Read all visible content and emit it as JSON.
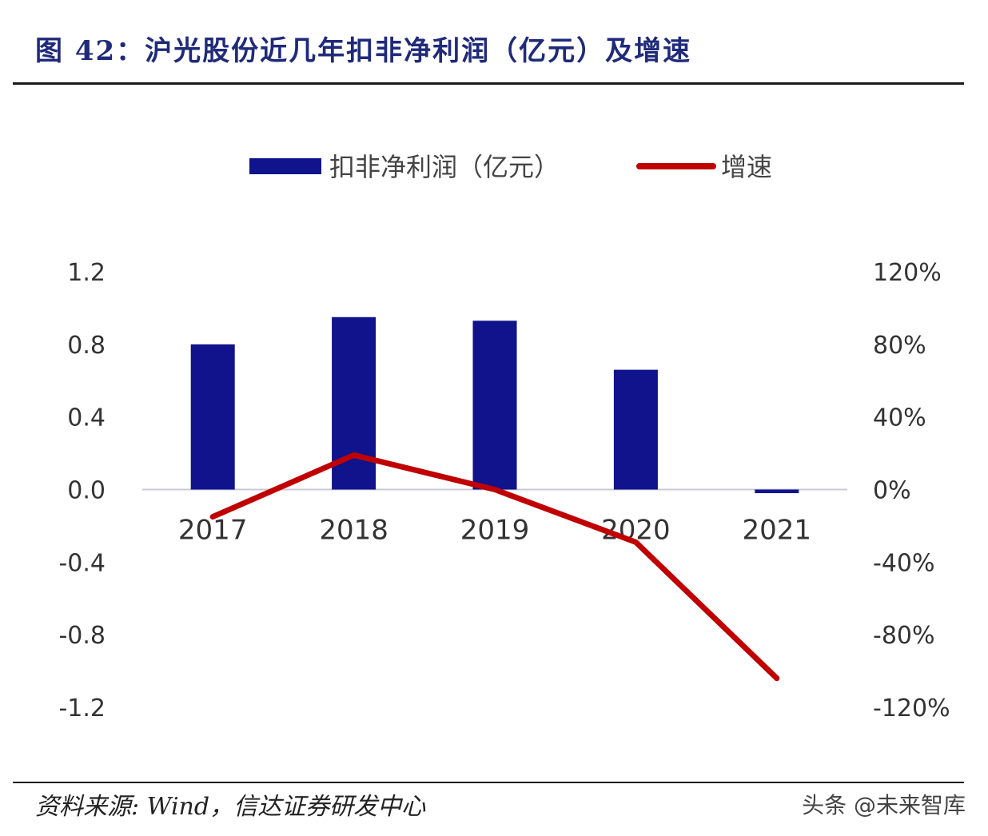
{
  "figure": {
    "title": "图 42：沪光股份近几年扣非净利润（亿元）及增速",
    "source": "资料来源: Wind，信达证券研发中心",
    "watermark": "头条 @未来智库"
  },
  "colors": {
    "bar": "#10138c",
    "line": "#c00000",
    "axis": "#c8c8d8"
  },
  "chart_data": {
    "type": "bar",
    "categories": [
      "2017",
      "2018",
      "2019",
      "2020",
      "2021"
    ],
    "series": [
      {
        "name": "扣非净利润（亿元）",
        "type": "bar",
        "axis": "left",
        "values": [
          0.8,
          0.95,
          0.93,
          0.66,
          -0.02
        ]
      },
      {
        "name": "增速",
        "type": "line",
        "axis": "right",
        "values": [
          -0.15,
          0.19,
          0.0,
          -0.29,
          -1.04
        ]
      }
    ],
    "left_axis": {
      "ylim": [
        -1.2,
        1.2
      ],
      "ticks": [
        "1.2",
        "0.8",
        "0.4",
        "0.0",
        "-0.4",
        "-0.8",
        "-1.2"
      ]
    },
    "right_axis": {
      "ylim": [
        -1.2,
        1.2
      ],
      "ticks": [
        "120%",
        "80%",
        "40%",
        "0%",
        "-40%",
        "-80%",
        "-120%"
      ]
    },
    "legend_position": "top",
    "grid": false
  }
}
